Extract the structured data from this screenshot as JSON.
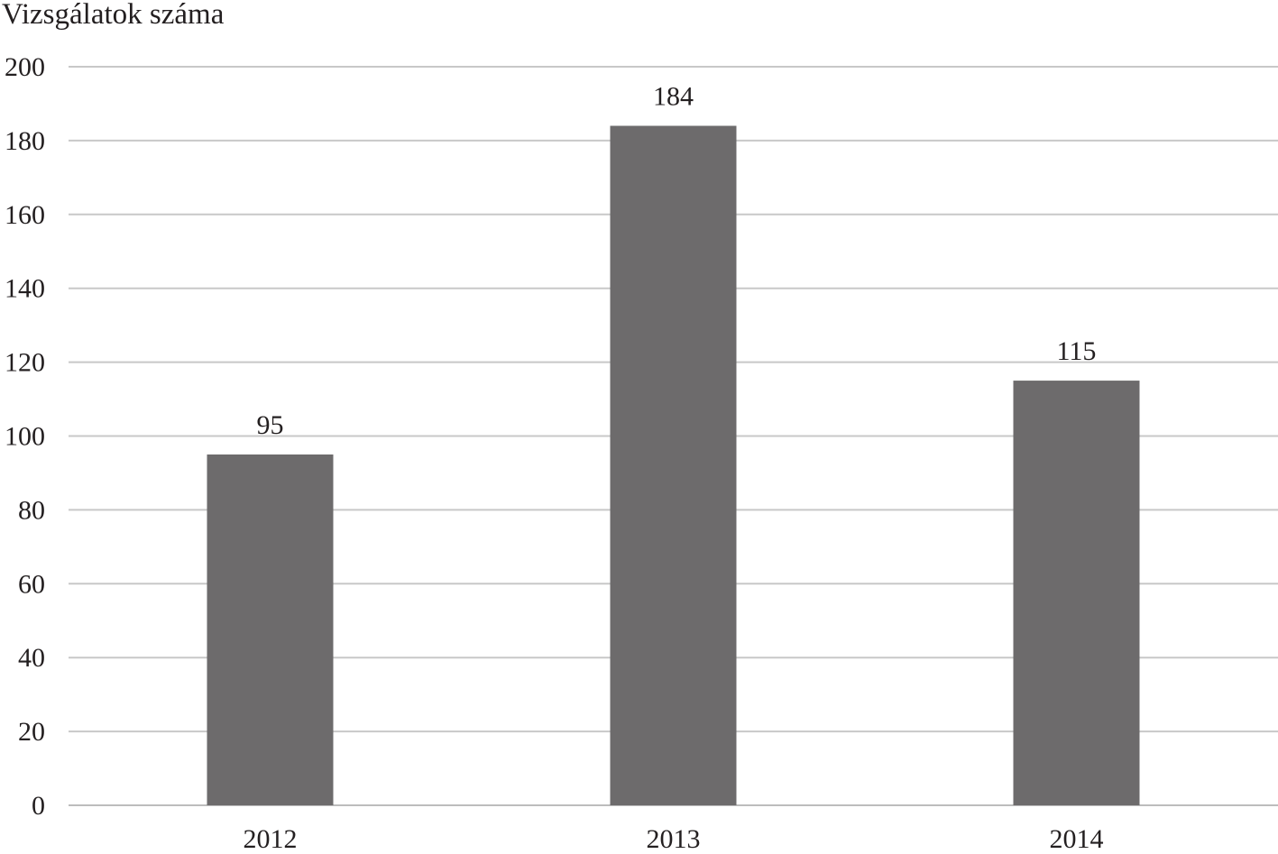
{
  "chart_data": {
    "type": "bar",
    "title": "",
    "xlabel": "",
    "ylabel": "Vizsgálatok száma",
    "categories": [
      "2012",
      "2013",
      "2014"
    ],
    "values": [
      95,
      184,
      115
    ],
    "data_labels": [
      "95",
      "184",
      "115"
    ],
    "ylim": [
      0,
      200
    ],
    "yticks": [
      0,
      20,
      40,
      60,
      80,
      100,
      120,
      140,
      160,
      180,
      200
    ],
    "grid": true,
    "bar_color": "#6d6b6c"
  }
}
